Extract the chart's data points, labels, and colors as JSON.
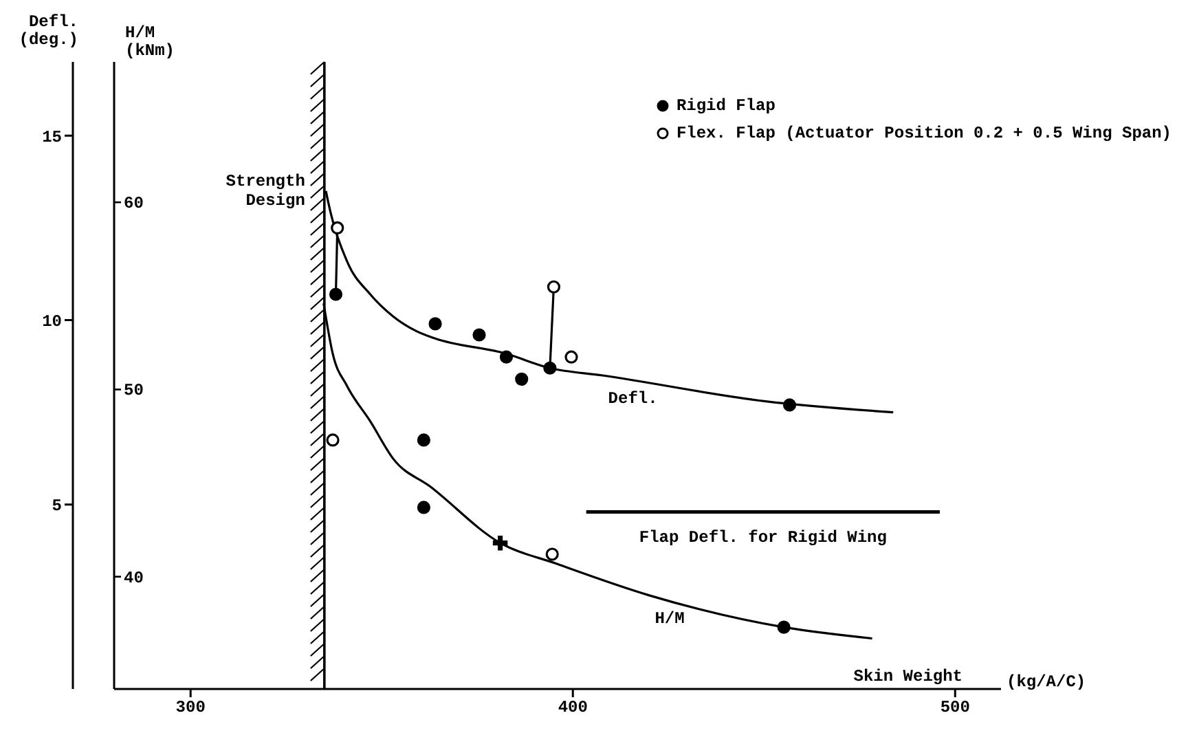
{
  "chart_data": {
    "type": "scatter",
    "xlabel": "Skin Weight",
    "ylabel": "Defl.\n(deg.)",
    "y2label": "H/M\n(kNm)",
    "annotations": [
      "(kg/A/C)"
    ],
    "xlim": [
      280,
      512
    ],
    "xticks": [
      300,
      400,
      500
    ],
    "ylim": [
      0,
      17
    ],
    "yticks": [
      5,
      10,
      15
    ],
    "y2lim": [
      34,
      67.5
    ],
    "y2ticks": [
      40,
      50,
      60
    ],
    "legend": "top right",
    "ref_lines": [
      {
        "axis": "x",
        "value": 335,
        "label": "Strength Design",
        "color": "#000000"
      }
    ],
    "series": [
      {
        "name": "Rigid Flap",
        "color": "#000000",
        "marker": "circle",
        "x": [
          338,
          364,
          375.5,
          382.6,
          386.6,
          394,
          456.7
        ],
        "values": [
          10.7,
          9.9,
          9.6,
          9.0,
          8.4,
          8.7,
          7.7
        ]
      },
      {
        "name": "Flex. Flap (Actuator Position 0.2 + 0.5 Wing Span)",
        "color": "#ffffff",
        "marker": "circle",
        "x": [
          338.4,
          395,
          399.6
        ],
        "values": [
          12.5,
          10.9,
          9.0
        ]
      },
      {
        "color": "#000000",
        "marker": "circle",
        "axis": "y2",
        "x": [
          361,
          361,
          455.2
        ],
        "values": [
          47.3,
          43.7,
          37.3
        ]
      },
      {
        "color": "#ffffff",
        "marker": "circle",
        "axis": "y2",
        "x": [
          337.2,
          394.6
        ],
        "values": [
          47.3,
          41.2
        ]
      },
      {
        "color": "#000000",
        "marker": "cross",
        "axis": "y2",
        "x": [
          381
        ],
        "values": [
          41.8
        ]
      },
      {
        "name": "Defl.",
        "type": "line",
        "color": "#000000",
        "marker": "none",
        "x": [
          335.4,
          336,
          340.9,
          347,
          353,
          359.1,
          364,
          382.2,
          394,
          407.8,
          450.4,
          483.8
        ],
        "values": [
          13.5,
          13.2,
          11.6,
          10.7,
          10.1,
          9.7,
          9.5,
          9.1,
          8.7,
          8.5,
          7.8,
          7.5
        ]
      },
      {
        "name": "H/M",
        "type": "line",
        "color": "#000000",
        "marker": "none",
        "axis": "y2",
        "x": [
          334.8,
          337.2,
          340.9,
          347,
          353,
          362.8,
          381,
          395.6,
          420,
          455.2,
          478.3
        ],
        "values": [
          54.6,
          51.9,
          50.2,
          48.3,
          46.3,
          44.8,
          41.8,
          40.7,
          39.0,
          37.3,
          36.7
        ]
      },
      {
        "type": "line",
        "color": "#000000",
        "marker": "none",
        "x": [
          338.4,
          338
        ],
        "values": [
          12.5,
          10.7
        ]
      },
      {
        "type": "line",
        "color": "#000000",
        "marker": "none",
        "x": [
          395,
          394
        ],
        "values": [
          10.9,
          8.7
        ]
      },
      {
        "name": "Flap Defl. for Rigid Wing",
        "type": "line",
        "color": "#000000",
        "marker": "none",
        "x": [
          403.5,
          496
        ],
        "values": [
          4.8,
          4.8
        ]
      }
    ]
  }
}
